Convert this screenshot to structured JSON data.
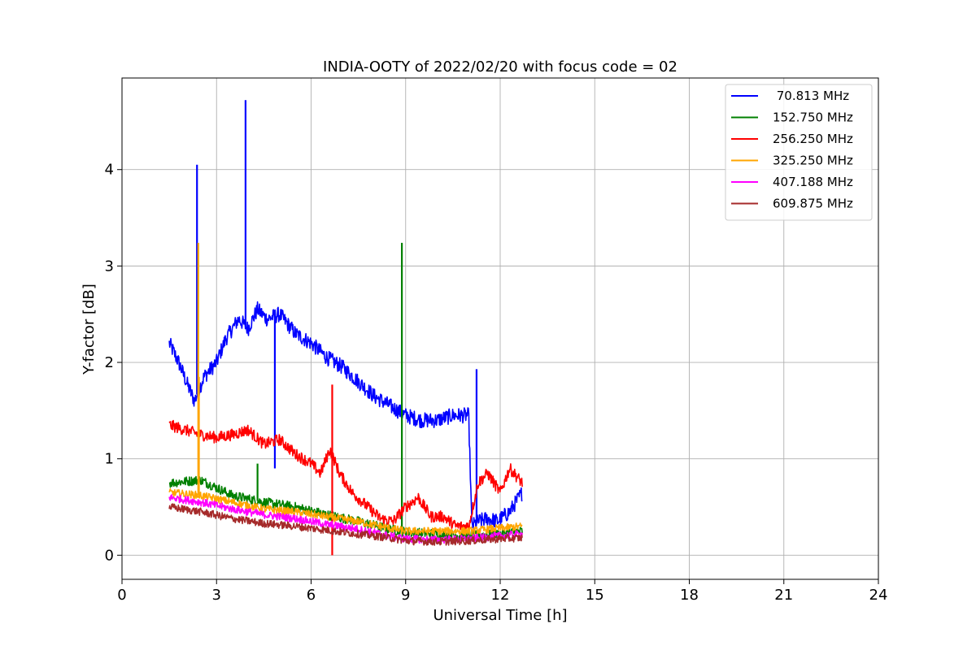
{
  "chart_data": {
    "type": "line",
    "title": "INDIA-OOTY of 2022/02/20 with focus code = 02",
    "xlabel": "Universal Time [h]",
    "ylabel": "Y-factor [dB]",
    "xlim": [
      0,
      24
    ],
    "ylim": [
      -0.25,
      4.95
    ],
    "xticks": [
      "0",
      "3",
      "6",
      "9",
      "12",
      "15",
      "18",
      "21",
      "24"
    ],
    "xtick_values": [
      0,
      3,
      6,
      9,
      12,
      15,
      18,
      21,
      24
    ],
    "yticks": [
      "0",
      "1",
      "2",
      "3",
      "4"
    ],
    "ytick_values": [
      0,
      1,
      2,
      3,
      4
    ],
    "grid": true,
    "legend_position": "top-right",
    "series": [
      {
        "name": " 70.813 MHz",
        "color": "#0000ff",
        "noise": 0.08,
        "x": [
          1.5,
          1.8,
          2.1,
          2.3,
          2.6,
          3.0,
          3.3,
          3.7,
          4.0,
          4.3,
          4.6,
          5.0,
          5.5,
          6.0,
          6.5,
          7.0,
          7.5,
          8.0,
          8.5,
          9.0,
          9.5,
          10.0,
          10.5,
          11.0,
          11.1,
          11.3,
          11.6,
          11.9,
          12.3,
          12.7
        ],
        "y": [
          2.2,
          2.0,
          1.75,
          1.6,
          1.85,
          2.0,
          2.25,
          2.45,
          2.35,
          2.55,
          2.45,
          2.5,
          2.3,
          2.2,
          2.05,
          1.95,
          1.8,
          1.65,
          1.55,
          1.45,
          1.4,
          1.4,
          1.45,
          1.45,
          0.3,
          0.35,
          0.38,
          0.35,
          0.45,
          0.65
        ],
        "spikes": [
          [
            2.38,
            4.05
          ],
          [
            3.92,
            4.72
          ],
          [
            4.85,
            0.9
          ],
          [
            11.25,
            1.93
          ]
        ]
      },
      {
        "name": "152.750 MHz",
        "color": "#008000",
        "noise": 0.05,
        "x": [
          1.5,
          2.5,
          3.5,
          4.5,
          5.5,
          6.5,
          7.5,
          8.5,
          9.0,
          10.0,
          11.0,
          12.0,
          12.7
        ],
        "y": [
          0.75,
          0.78,
          0.62,
          0.55,
          0.5,
          0.42,
          0.35,
          0.27,
          0.24,
          0.22,
          0.2,
          0.22,
          0.25
        ],
        "spikes": [
          [
            4.3,
            0.95
          ],
          [
            8.88,
            3.24
          ]
        ]
      },
      {
        "name": "256.250 MHz",
        "color": "#ff0000",
        "noise": 0.06,
        "x": [
          1.5,
          2.0,
          2.5,
          3.0,
          3.5,
          4.0,
          4.5,
          5.0,
          5.5,
          6.0,
          6.3,
          6.6,
          6.9,
          7.3,
          7.8,
          8.2,
          8.6,
          9.0,
          9.4,
          9.8,
          10.2,
          10.6,
          11.0,
          11.3,
          11.6,
          12.0,
          12.3,
          12.7
        ],
        "y": [
          1.35,
          1.3,
          1.25,
          1.22,
          1.25,
          1.3,
          1.15,
          1.2,
          1.05,
          0.95,
          0.85,
          1.1,
          0.85,
          0.65,
          0.5,
          0.38,
          0.35,
          0.5,
          0.6,
          0.4,
          0.4,
          0.3,
          0.3,
          0.75,
          0.85,
          0.65,
          0.9,
          0.75
        ],
        "spikes": [
          [
            6.67,
            1.77
          ],
          [
            6.67,
            0.0
          ]
        ]
      },
      {
        "name": "325.250 MHz",
        "color": "#ffa500",
        "noise": 0.04,
        "x": [
          1.5,
          2.5,
          3.5,
          4.5,
          5.5,
          6.5,
          7.5,
          8.5,
          9.0,
          10.0,
          11.0,
          12.0,
          12.7
        ],
        "y": [
          0.65,
          0.62,
          0.55,
          0.48,
          0.45,
          0.4,
          0.35,
          0.28,
          0.25,
          0.25,
          0.25,
          0.28,
          0.3
        ],
        "spikes": [
          [
            2.42,
            3.24
          ],
          [
            2.44,
            1.85
          ]
        ]
      },
      {
        "name": "407.188 MHz",
        "color": "#ff00ff",
        "noise": 0.04,
        "x": [
          1.5,
          2.5,
          3.5,
          4.5,
          5.5,
          6.5,
          7.5,
          8.5,
          9.0,
          10.0,
          11.0,
          12.0,
          12.7
        ],
        "y": [
          0.6,
          0.55,
          0.48,
          0.42,
          0.38,
          0.32,
          0.27,
          0.2,
          0.17,
          0.16,
          0.17,
          0.2,
          0.22
        ],
        "spikes": []
      },
      {
        "name": "609.875 MHz",
        "color": "#a52a2a",
        "noise": 0.04,
        "x": [
          1.5,
          2.5,
          3.5,
          4.5,
          5.5,
          6.5,
          7.5,
          8.5,
          9.0,
          10.0,
          11.0,
          12.0,
          12.7
        ],
        "y": [
          0.5,
          0.45,
          0.38,
          0.33,
          0.3,
          0.26,
          0.22,
          0.18,
          0.15,
          0.14,
          0.15,
          0.17,
          0.18
        ],
        "spikes": []
      }
    ]
  }
}
